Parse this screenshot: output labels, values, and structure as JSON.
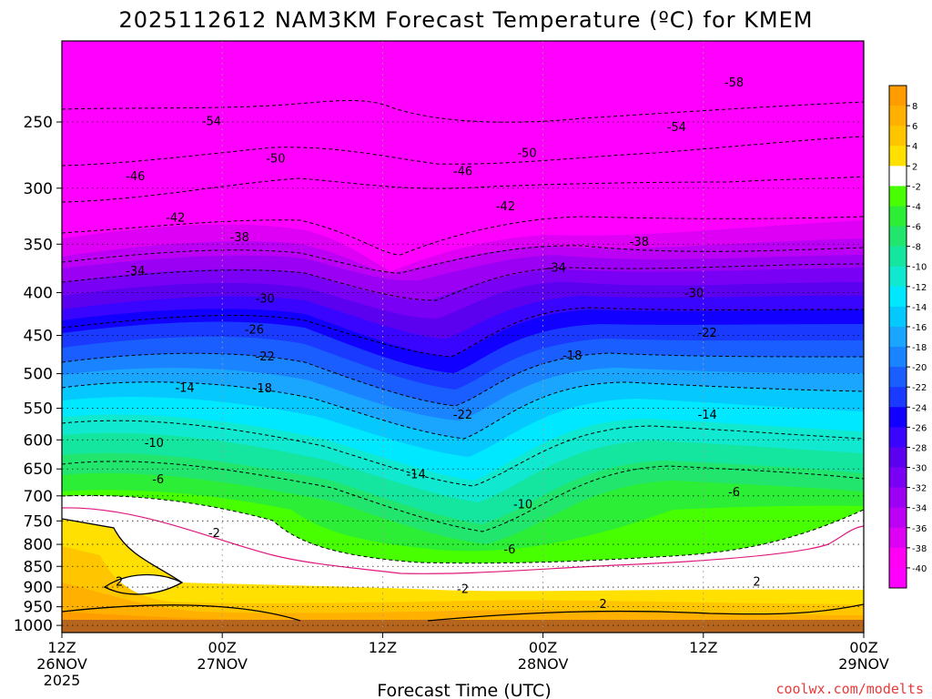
{
  "chart_data": {
    "type": "heatmap",
    "title": "2025112612 NAM3KM Forecast Temperature (ºC) for KMEM",
    "xlabel": "Forecast Time (UTC)",
    "x_ticks": [
      {
        "hour": 0,
        "lines": [
          "12Z",
          "26NOV",
          "2025"
        ]
      },
      {
        "hour": 12,
        "lines": [
          "00Z",
          "27NOV"
        ]
      },
      {
        "hour": 24,
        "lines": [
          "12Z"
        ]
      },
      {
        "hour": 36,
        "lines": [
          "00Z",
          "28NOV"
        ]
      },
      {
        "hour": 48,
        "lines": [
          "12Z"
        ]
      },
      {
        "hour": 60,
        "lines": [
          "00Z",
          "29NOV"
        ]
      }
    ],
    "xlim": [
      0,
      60
    ],
    "y_ticks": [
      250,
      300,
      350,
      400,
      450,
      500,
      550,
      600,
      650,
      700,
      750,
      800,
      850,
      900,
      950,
      1000
    ],
    "ylim": [
      200,
      1020
    ],
    "y_scale": "log",
    "colorbar": {
      "tick_labels": [
        "8",
        "6",
        "4",
        "2",
        "-2",
        "-4",
        "-6",
        "-8",
        "-10",
        "-12",
        "-14",
        "-16",
        "-18",
        "-20",
        "-22",
        "-24",
        "-26",
        "-28",
        "-30",
        "-32",
        "-34",
        "-36",
        "-38",
        "-40"
      ],
      "colors": [
        "#ff9d00",
        "#ffb000",
        "#ffc600",
        "#ffe000",
        "#ffffff",
        "#47ff00",
        "#2dee36",
        "#22e56e",
        "#14e6a0",
        "#10e8cf",
        "#00e8ff",
        "#05c8ff",
        "#1aa5ff",
        "#1a83ff",
        "#1a5eff",
        "#1a3aff",
        "#1100ff",
        "#3a05ff",
        "#5c00f0",
        "#7a00f5",
        "#9b00f5",
        "#bb00f5",
        "#dd00f5",
        "#ff00f5",
        "#ff00ff"
      ]
    },
    "contour_labels": [
      {
        "text": "-54",
        "hour": 11.2,
        "p": 249
      },
      {
        "text": "-50",
        "hour": 16.0,
        "p": 276
      },
      {
        "text": "-46",
        "hour": 5.5,
        "p": 290
      },
      {
        "text": "-42",
        "hour": 8.5,
        "p": 325
      },
      {
        "text": "-38",
        "hour": 13.3,
        "p": 343
      },
      {
        "text": "-34",
        "hour": 5.5,
        "p": 376
      },
      {
        "text": "-30",
        "hour": 15.2,
        "p": 406
      },
      {
        "text": "-26",
        "hour": 14.4,
        "p": 442
      },
      {
        "text": "-22",
        "hour": 15.2,
        "p": 476
      },
      {
        "text": "-18",
        "hour": 15.0,
        "p": 520
      },
      {
        "text": "-14",
        "hour": 9.2,
        "p": 519
      },
      {
        "text": "-10",
        "hour": 6.9,
        "p": 604
      },
      {
        "text": "-6",
        "hour": 7.2,
        "p": 668
      },
      {
        "text": "-2",
        "hour": 11.4,
        "p": 774
      },
      {
        "text": "2",
        "hour": 4.3,
        "p": 885
      },
      {
        "text": "-58",
        "hour": 50.3,
        "p": 224
      },
      {
        "text": "-54",
        "hour": 46.0,
        "p": 253
      },
      {
        "text": "-50",
        "hour": 34.8,
        "p": 272
      },
      {
        "text": "-46",
        "hour": 30.0,
        "p": 286
      },
      {
        "text": "-42",
        "hour": 33.2,
        "p": 315
      },
      {
        "text": "-38",
        "hour": 43.2,
        "p": 347
      },
      {
        "text": "-34",
        "hour": 37.0,
        "p": 373
      },
      {
        "text": "-30",
        "hour": 47.3,
        "p": 400
      },
      {
        "text": "-22",
        "hour": 48.3,
        "p": 446
      },
      {
        "text": "-18",
        "hour": 38.2,
        "p": 475
      },
      {
        "text": "-22",
        "hour": 30.0,
        "p": 559
      },
      {
        "text": "-14",
        "hour": 26.5,
        "p": 659
      },
      {
        "text": "-14",
        "hour": 48.3,
        "p": 559
      },
      {
        "text": "-10",
        "hour": 34.5,
        "p": 715
      },
      {
        "text": "-6",
        "hour": 50.3,
        "p": 692
      },
      {
        "text": "-6",
        "hour": 33.5,
        "p": 810
      },
      {
        "text": "-2",
        "hour": 30.0,
        "p": 903
      },
      {
        "text": "2",
        "hour": 52.0,
        "p": 885
      },
      {
        "text": "2",
        "hour": 40.5,
        "p": 941
      }
    ]
  },
  "credit": "coolwx.com/modelts"
}
